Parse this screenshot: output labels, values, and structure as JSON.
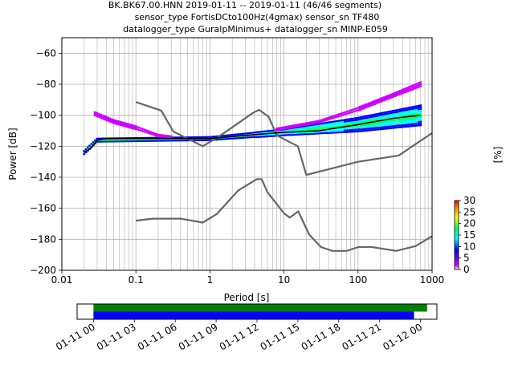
{
  "title": {
    "line1": "BK.BK67.00.HNN   2019-01-11 -- 2019-01-11  (46/46 segments)",
    "line2": "sensor_type FortisDCto100Hz(4gmax) sensor_sn TF480",
    "line3": "datalogger_type GuralpMinimus+ datalogger_sn MINP-E059"
  },
  "chart_data": [
    {
      "type": "heatmap",
      "xlabel": "Period [s]",
      "ylabel": "Power [dB]",
      "x_scale": "log",
      "xlim": [
        0.01,
        1000
      ],
      "ylim": [
        -200,
        -50
      ],
      "x_ticks": [
        {
          "v": 0.01,
          "label": "0.01"
        },
        {
          "v": 0.1,
          "label": "0.1"
        },
        {
          "v": 1,
          "label": "1"
        },
        {
          "v": 10,
          "label": "10"
        },
        {
          "v": 100,
          "label": "100"
        },
        {
          "v": 1000,
          "label": "1000"
        }
      ],
      "y_ticks": [
        {
          "v": -60,
          "label": "−60"
        },
        {
          "v": -80,
          "label": "−80"
        },
        {
          "v": -100,
          "label": "−100"
        },
        {
          "v": -120,
          "label": "−120"
        },
        {
          "v": -140,
          "label": "−140"
        },
        {
          "v": -160,
          "label": "−160"
        },
        {
          "v": -180,
          "label": "−180"
        },
        {
          "v": -200,
          "label": "−200"
        }
      ],
      "grid": true,
      "colorbar": {
        "label": "[%]",
        "range": [
          0,
          30
        ],
        "ticks": [
          {
            "v": 0,
            "label": "0"
          },
          {
            "v": 5,
            "label": "5"
          },
          {
            "v": 10,
            "label": "10"
          },
          {
            "v": 15,
            "label": "15"
          },
          {
            "v": 20,
            "label": "20"
          },
          {
            "v": 25,
            "label": "25"
          },
          {
            "v": 30,
            "label": "30"
          }
        ],
        "colors": [
          "#ffffff",
          "#cc00ff",
          "#0000ff",
          "#00ffff",
          "#00ff66",
          "#ffff00",
          "#ff9900",
          "#ff0000"
        ]
      },
      "series": [
        {
          "role": "noise-model-high",
          "color": "#666666",
          "points": [
            [
              0.1,
              -91.5
            ],
            [
              0.22,
              -97
            ],
            [
              0.32,
              -110.5
            ],
            [
              0.8,
              -120
            ],
            [
              1.3,
              -114
            ],
            [
              3.8,
              -98.5
            ],
            [
              4.6,
              -96.5
            ],
            [
              6.2,
              -101
            ],
            [
              8,
              -113
            ],
            [
              15.4,
              -120
            ],
            [
              20,
              -138.5
            ],
            [
              100,
              -130
            ],
            [
              354,
              -126
            ],
            [
              1000,
              -111.5
            ]
          ]
        },
        {
          "role": "noise-model-low",
          "color": "#666666",
          "points": [
            [
              0.1,
              -168
            ],
            [
              0.17,
              -166.7
            ],
            [
              0.4,
              -166.7
            ],
            [
              0.8,
              -169.2
            ],
            [
              1.24,
              -163.7
            ],
            [
              2.4,
              -148.6
            ],
            [
              4.3,
              -141.2
            ],
            [
              5.0,
              -141.2
            ],
            [
              6.0,
              -149.7
            ],
            [
              10,
              -163.3
            ],
            [
              12,
              -166
            ],
            [
              15.6,
              -162
            ],
            [
              21.9,
              -177
            ],
            [
              31.6,
              -185
            ],
            [
              45,
              -187.5
            ],
            [
              70,
              -187.5
            ],
            [
              101,
              -185
            ],
            [
              154,
              -185
            ],
            [
              328,
              -187.5
            ],
            [
              600,
              -184.4
            ],
            [
              1000,
              -178
            ]
          ]
        },
        {
          "role": "mode",
          "color": "#000000",
          "points": [
            [
              0.02,
              -124
            ],
            [
              0.025,
              -121
            ],
            [
              0.03,
              -116
            ],
            [
              0.04,
              -115
            ],
            [
              0.1,
              -115
            ],
            [
              1,
              -115
            ],
            [
              3,
              -113
            ],
            [
              10,
              -111
            ],
            [
              30,
              -110
            ],
            [
              100,
              -106
            ],
            [
              300,
              -102
            ],
            [
              700,
              -100
            ]
          ]
        }
      ],
      "density_bands": [
        {
          "x0": 0.02,
          "x1": 700,
          "center": [
            [
              0.02,
              -124
            ],
            [
              0.03,
              -116
            ],
            [
              1,
              -115
            ],
            [
              10,
              -111
            ],
            [
              100,
              -106
            ],
            [
              700,
              -100
            ]
          ],
          "width_db": [
            3,
            3,
            3,
            5,
            10,
            14
          ],
          "value": 18
        },
        {
          "x0": 0.028,
          "x1": 0.3,
          "center": [
            [
              0.028,
              -99
            ],
            [
              0.05,
              -104
            ],
            [
              0.1,
              -108
            ],
            [
              0.2,
              -113
            ],
            [
              0.3,
              -114
            ]
          ],
          "width_db": [
            3,
            3,
            3,
            2,
            2
          ],
          "value": 1
        },
        {
          "x0": 8,
          "x1": 700,
          "center": [
            [
              8,
              -109
            ],
            [
              30,
              -104
            ],
            [
              100,
              -96
            ],
            [
              300,
              -87
            ],
            [
              700,
              -80
            ]
          ],
          "width_db": [
            2,
            2,
            3,
            3,
            4
          ],
          "value": 1
        }
      ]
    },
    {
      "type": "bar",
      "role": "data-availability",
      "x_ticks": [
        {
          "label": "01-11 00",
          "frac": 0.0
        },
        {
          "label": "01-11 03",
          "frac": 0.125
        },
        {
          "label": "01-11 06",
          "frac": 0.25
        },
        {
          "label": "01-11 09",
          "frac": 0.375
        },
        {
          "label": "01-11 12",
          "frac": 0.5
        },
        {
          "label": "01-11 15",
          "frac": 0.625
        },
        {
          "label": "01-11 18",
          "frac": 0.75
        },
        {
          "label": "01-11 21",
          "frac": 0.875
        },
        {
          "label": "01-12 00",
          "frac": 1.0
        }
      ],
      "xlim_frac": [
        -0.05,
        1.05
      ],
      "series": [
        {
          "color": "#008000",
          "start_frac": 0.0,
          "end_frac": 1.02
        },
        {
          "color": "#0000ff",
          "start_frac": 0.0,
          "end_frac": 0.98
        }
      ]
    }
  ]
}
